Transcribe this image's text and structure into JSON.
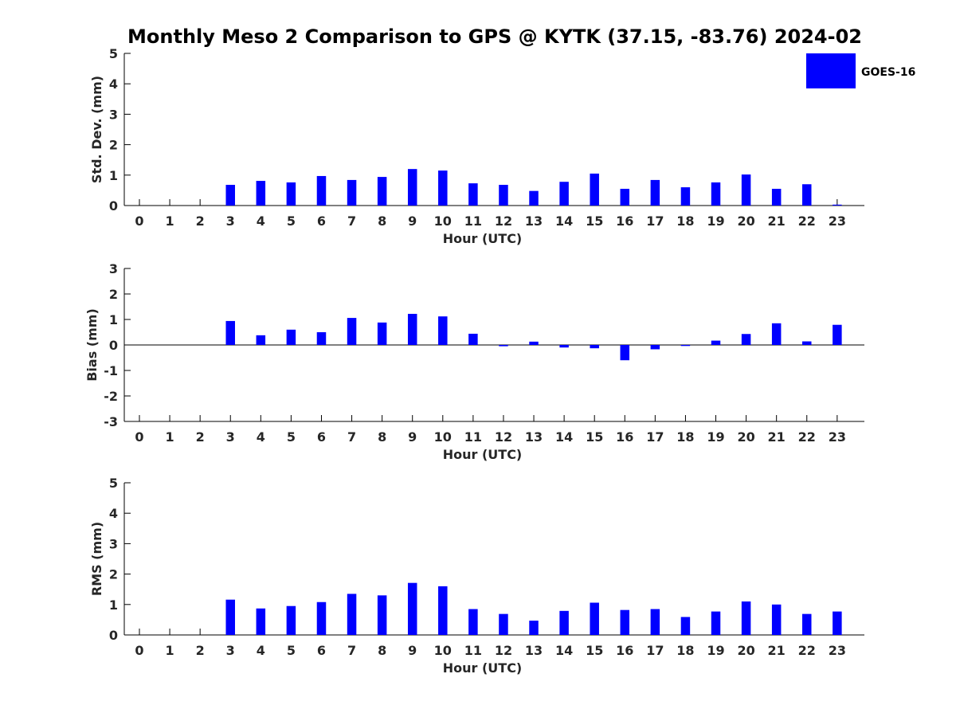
{
  "chart_data": {
    "title": "Monthly Meso 2 Comparison to GPS @ KYTK (37.15, -83.76) 2024-02",
    "legend": {
      "label": "GOES-16",
      "color": "#0000ff",
      "placement": "top-right"
    },
    "hours": [
      0,
      1,
      2,
      3,
      4,
      5,
      6,
      7,
      8,
      9,
      10,
      11,
      12,
      13,
      14,
      15,
      16,
      17,
      18,
      19,
      20,
      21,
      22,
      23
    ],
    "panels": [
      {
        "type": "bar",
        "xlabel": "Hour (UTC)",
        "ylabel": "Std. Dev. (mm)",
        "ylim": [
          0,
          5
        ],
        "yticks": [
          "0",
          "1",
          "2",
          "3",
          "4",
          "5"
        ],
        "values": [
          null,
          null,
          null,
          0.68,
          0.81,
          0.76,
          0.97,
          0.84,
          0.94,
          1.2,
          1.15,
          0.73,
          0.68,
          0.48,
          0.78,
          1.05,
          0.55,
          0.84,
          0.6,
          0.76,
          1.02,
          0.55,
          0.7,
          0.03
        ]
      },
      {
        "type": "bar",
        "xlabel": "Hour (UTC)",
        "ylabel": "Bias (mm)",
        "ylim": [
          -3,
          3
        ],
        "yticks": [
          "-3",
          "-2",
          "-1",
          "0",
          "1",
          "2",
          "3"
        ],
        "values": [
          null,
          null,
          null,
          0.94,
          0.38,
          0.6,
          0.5,
          1.06,
          0.88,
          1.22,
          1.12,
          0.44,
          -0.05,
          0.13,
          -0.1,
          -0.13,
          -0.6,
          -0.17,
          -0.04,
          0.17,
          0.43,
          0.85,
          0.14,
          0.79
        ]
      },
      {
        "type": "bar",
        "xlabel": "Hour (UTC)",
        "ylabel": "RMS (mm)",
        "ylim": [
          0,
          5
        ],
        "yticks": [
          "0",
          "1",
          "2",
          "3",
          "4",
          "5"
        ],
        "values": [
          null,
          null,
          null,
          1.16,
          0.87,
          0.95,
          1.08,
          1.35,
          1.3,
          1.71,
          1.6,
          0.85,
          0.69,
          0.47,
          0.79,
          1.06,
          0.82,
          0.85,
          0.59,
          0.77,
          1.1,
          1.0,
          0.69,
          0.77
        ]
      }
    ]
  }
}
